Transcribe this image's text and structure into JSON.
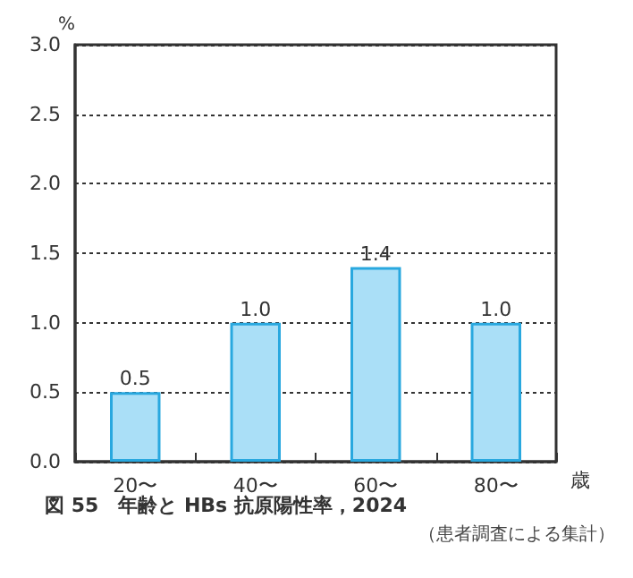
{
  "chart_data": {
    "type": "bar",
    "title": "図 55　年齢と HBs 抗原陽性率，2024",
    "annotations": [
      "（患者調査による集計）"
    ],
    "xlabel": "歳",
    "ylabel": "%",
    "categories": [
      "20〜",
      "40〜",
      "60〜",
      "80〜"
    ],
    "values": [
      0.5,
      1.0,
      1.4,
      1.0
    ],
    "value_labels": [
      "0.5",
      "1.0",
      "1.4",
      "1.0"
    ],
    "color": "#aadff7",
    "ylim": [
      0,
      3
    ],
    "yticks": [
      {
        "value": 0,
        "label": "0.0"
      },
      {
        "value": 0.5,
        "label": "0.5"
      },
      {
        "value": 1,
        "label": "1.0"
      },
      {
        "value": 1.5,
        "label": "1.5"
      },
      {
        "value": 2,
        "label": "2.0"
      },
      {
        "value": 2.5,
        "label": "2.5"
      },
      {
        "value": 3,
        "label": "3.0"
      }
    ],
    "grid": "y"
  }
}
